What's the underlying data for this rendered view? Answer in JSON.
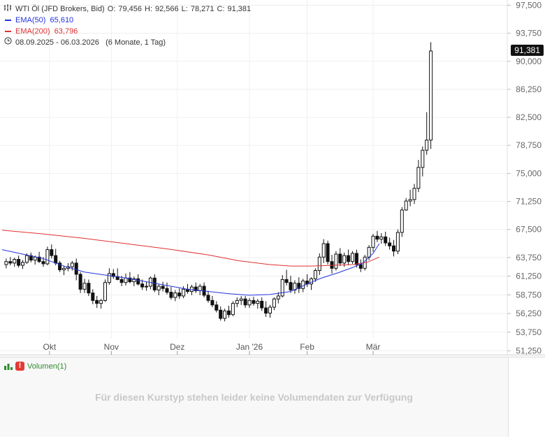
{
  "header": {
    "instrument": "WTI Öl (JFD Brokers, Bid)",
    "open_label": "O:",
    "open": "79,456",
    "high_label": "H:",
    "high": "92,566",
    "low_label": "L:",
    "low": "78,271",
    "close_label": "C:",
    "close": "91,381",
    "ema50_label": "EMA(50)",
    "ema50_value": "65,610",
    "ema200_label": "EMA(200)",
    "ema200_value": "63,796",
    "date_range": "08.09.2025 - 06.03.2026",
    "range_note": "(6 Monate, 1 Tag)"
  },
  "last_price_label": "91,381",
  "colors": {
    "ema50": "#2233dd",
    "ema200": "#e03030",
    "candle": "#111111",
    "volume_green": "#2e8b2e"
  },
  "volume": {
    "legend_label": "Volumen(1)",
    "message": "Für diesen Kurstyp stehen leider keine Volumendaten zur Verfügung"
  },
  "chart_data": {
    "type": "candlestick",
    "y_axis_ticks": [
      "97,500",
      "93,750",
      "90,000",
      "86,250",
      "82,500",
      "78,750",
      "75,000",
      "71,250",
      "67,500",
      "63,750",
      "61,250",
      "58,750",
      "56,250",
      "53,750",
      "51,250"
    ],
    "y_axis_values": [
      97.5,
      93.75,
      90.0,
      86.25,
      82.5,
      78.75,
      75.0,
      71.25,
      67.5,
      63.75,
      61.25,
      58.75,
      56.25,
      53.75,
      51.25
    ],
    "ylim": [
      50.75,
      98.2
    ],
    "x_axis_labels": [
      "Okt",
      "Nov",
      "Dez",
      "Jan '26",
      "Feb",
      "Mär"
    ],
    "x_axis_label_days": [
      23,
      53,
      85,
      120,
      148,
      180
    ],
    "day_range": [
      0,
      199
    ],
    "ema50_points": [
      [
        0,
        64.8
      ],
      [
        10,
        64.2
      ],
      [
        20,
        63.6
      ],
      [
        30,
        62.6
      ],
      [
        40,
        61.8
      ],
      [
        50,
        61.4
      ],
      [
        60,
        61.0
      ],
      [
        70,
        60.5
      ],
      [
        80,
        60.0
      ],
      [
        90,
        59.5
      ],
      [
        100,
        59.2
      ],
      [
        110,
        58.9
      ],
      [
        120,
        58.7
      ],
      [
        130,
        58.8
      ],
      [
        140,
        59.2
      ],
      [
        148,
        60.2
      ],
      [
        155,
        61.0
      ],
      [
        163,
        61.7
      ],
      [
        170,
        62.4
      ],
      [
        175,
        63.0
      ],
      [
        180,
        64.3
      ],
      [
        183,
        65.61
      ]
    ],
    "ema200_points": [
      [
        0,
        67.4
      ],
      [
        20,
        66.9
      ],
      [
        40,
        66.3
      ],
      [
        60,
        65.6
      ],
      [
        80,
        64.9
      ],
      [
        100,
        64.1
      ],
      [
        115,
        63.3
      ],
      [
        130,
        62.8
      ],
      [
        140,
        62.6
      ],
      [
        150,
        62.6
      ],
      [
        160,
        62.7
      ],
      [
        170,
        62.8
      ],
      [
        177,
        63.1
      ],
      [
        183,
        63.796
      ]
    ],
    "candles": [
      [
        2,
        62.8,
        63.6,
        62.3,
        63.2
      ],
      [
        4,
        63.2,
        63.8,
        62.7,
        63.0
      ],
      [
        6,
        63.0,
        63.7,
        62.5,
        63.5
      ],
      [
        8,
        63.5,
        64.0,
        62.4,
        62.7
      ],
      [
        10,
        62.7,
        63.4,
        62.2,
        63.1
      ],
      [
        12,
        63.1,
        64.3,
        62.9,
        64.0
      ],
      [
        14,
        64.0,
        64.4,
        63.1,
        63.4
      ],
      [
        16,
        63.4,
        64.0,
        62.8,
        63.8
      ],
      [
        18,
        63.8,
        64.5,
        63.0,
        63.2
      ],
      [
        20,
        63.2,
        63.8,
        62.5,
        62.9
      ],
      [
        22,
        62.9,
        65.2,
        62.7,
        64.8
      ],
      [
        24,
        64.8,
        65.5,
        63.6,
        64.0
      ],
      [
        26,
        64.0,
        64.9,
        62.7,
        63.0
      ],
      [
        28,
        63.0,
        63.3,
        61.8,
        62.1
      ],
      [
        30,
        62.1,
        62.6,
        61.4,
        62.3
      ],
      [
        32,
        62.3,
        63.0,
        61.9,
        62.5
      ],
      [
        34,
        62.5,
        63.3,
        62.0,
        63.0
      ],
      [
        36,
        63.0,
        63.6,
        60.7,
        61.5
      ],
      [
        38,
        61.5,
        61.8,
        59.0,
        59.5
      ],
      [
        40,
        59.5,
        60.9,
        59.0,
        60.3
      ],
      [
        42,
        60.3,
        60.8,
        58.6,
        59.0
      ],
      [
        44,
        59.0,
        59.5,
        57.5,
        58.0
      ],
      [
        46,
        58.0,
        58.6,
        57.0,
        57.6
      ],
      [
        48,
        57.6,
        58.2,
        56.9,
        58.0
      ],
      [
        50,
        58.0,
        60.8,
        57.8,
        60.4
      ],
      [
        52,
        60.4,
        62.3,
        60.1,
        61.6
      ],
      [
        54,
        61.6,
        62.2,
        60.9,
        61.2
      ],
      [
        56,
        61.2,
        62.3,
        60.7,
        60.8
      ],
      [
        58,
        60.8,
        61.3,
        59.9,
        60.4
      ],
      [
        60,
        60.4,
        61.6,
        60.0,
        61.0
      ],
      [
        62,
        61.0,
        61.8,
        60.3,
        60.5
      ],
      [
        64,
        60.5,
        61.2,
        59.9,
        60.9
      ],
      [
        66,
        60.9,
        61.5,
        60.0,
        60.2
      ],
      [
        68,
        60.2,
        60.8,
        59.4,
        59.8
      ],
      [
        70,
        59.8,
        60.5,
        59.3,
        59.9
      ],
      [
        72,
        59.9,
        61.2,
        59.5,
        61.0
      ],
      [
        74,
        61.0,
        61.5,
        59.1,
        59.4
      ],
      [
        76,
        59.4,
        60.2,
        58.7,
        59.9
      ],
      [
        78,
        59.9,
        60.5,
        59.2,
        59.6
      ],
      [
        80,
        59.6,
        60.4,
        58.8,
        59.1
      ],
      [
        82,
        59.1,
        59.8,
        58.1,
        58.4
      ],
      [
        84,
        58.4,
        59.4,
        57.9,
        59.0
      ],
      [
        86,
        59.0,
        59.6,
        58.2,
        58.6
      ],
      [
        88,
        58.6,
        59.9,
        58.3,
        59.5
      ],
      [
        90,
        59.5,
        60.2,
        58.9,
        59.2
      ],
      [
        92,
        59.2,
        60.1,
        58.7,
        59.8
      ],
      [
        94,
        59.8,
        60.4,
        59.0,
        59.3
      ],
      [
        96,
        59.3,
        60.2,
        58.7,
        59.9
      ],
      [
        98,
        59.9,
        60.4,
        58.4,
        58.7
      ],
      [
        100,
        58.7,
        59.3,
        57.7,
        58.0
      ],
      [
        102,
        58.0,
        58.6,
        57.1,
        57.4
      ],
      [
        104,
        57.4,
        57.9,
        56.4,
        56.7
      ],
      [
        106,
        56.7,
        57.2,
        55.3,
        55.6
      ],
      [
        108,
        55.6,
        56.9,
        55.2,
        56.6
      ],
      [
        110,
        56.6,
        57.3,
        55.7,
        56.1
      ],
      [
        112,
        56.1,
        57.9,
        55.9,
        57.6
      ],
      [
        114,
        57.6,
        58.4,
        57.1,
        58.0
      ],
      [
        116,
        58.0,
        58.6,
        57.4,
        58.2
      ],
      [
        118,
        58.2,
        58.6,
        57.0,
        57.4
      ],
      [
        120,
        57.4,
        58.3,
        57.0,
        58.0
      ],
      [
        122,
        58.0,
        58.5,
        57.3,
        57.6
      ],
      [
        124,
        57.6,
        58.2,
        56.9,
        57.9
      ],
      [
        126,
        57.9,
        58.4,
        56.6,
        57.0
      ],
      [
        128,
        57.0,
        57.9,
        55.8,
        56.3
      ],
      [
        130,
        56.3,
        57.4,
        55.7,
        57.1
      ],
      [
        132,
        57.1,
        58.4,
        56.7,
        58.2
      ],
      [
        134,
        58.2,
        59.1,
        57.6,
        58.6
      ],
      [
        136,
        58.6,
        61.4,
        58.4,
        60.8
      ],
      [
        138,
        60.8,
        62.1,
        60.0,
        60.4
      ],
      [
        140,
        60.4,
        61.3,
        59.0,
        59.4
      ],
      [
        142,
        59.4,
        60.7,
        58.9,
        60.3
      ],
      [
        144,
        60.3,
        61.1,
        59.0,
        59.6
      ],
      [
        146,
        59.6,
        60.9,
        59.1,
        60.6
      ],
      [
        148,
        60.6,
        61.5,
        59.8,
        60.2
      ],
      [
        150,
        60.2,
        61.1,
        59.4,
        60.9
      ],
      [
        152,
        60.9,
        62.3,
        60.5,
        62.0
      ],
      [
        154,
        62.0,
        64.3,
        61.4,
        63.8
      ],
      [
        156,
        63.8,
        66.2,
        63.0,
        65.6
      ],
      [
        158,
        65.6,
        66.0,
        62.8,
        63.2
      ],
      [
        160,
        63.2,
        64.1,
        61.6,
        62.3
      ],
      [
        162,
        62.3,
        64.6,
        62.0,
        64.2
      ],
      [
        164,
        64.2,
        65.0,
        62.6,
        63.0
      ],
      [
        166,
        63.0,
        64.4,
        62.5,
        64.0
      ],
      [
        168,
        64.0,
        64.8,
        62.7,
        63.2
      ],
      [
        170,
        63.2,
        64.6,
        62.9,
        64.3
      ],
      [
        172,
        64.3,
        64.8,
        62.4,
        62.8
      ],
      [
        174,
        62.8,
        63.5,
        61.8,
        62.3
      ],
      [
        176,
        62.3,
        64.1,
        62.0,
        63.8
      ],
      [
        178,
        63.8,
        65.4,
        63.4,
        65.1
      ],
      [
        180,
        65.1,
        66.9,
        64.5,
        66.6
      ],
      [
        182,
        66.6,
        67.3,
        65.8,
        66.2
      ],
      [
        184,
        66.2,
        67.0,
        65.6,
        66.5
      ],
      [
        186,
        66.5,
        67.2,
        65.3,
        65.7
      ],
      [
        188,
        65.7,
        66.4,
        64.8,
        65.3
      ],
      [
        190,
        65.3,
        66.1,
        63.9,
        64.6
      ],
      [
        192,
        64.6,
        67.5,
        64.2,
        67.1
      ],
      [
        194,
        67.1,
        70.5,
        66.5,
        70.1
      ],
      [
        196,
        70.1,
        71.7,
        70.0,
        71.3
      ],
      [
        198,
        71.3,
        72.8,
        70.6,
        71.5
      ],
      [
        200,
        71.5,
        73.6,
        70.9,
        73.0
      ],
      [
        202,
        73.0,
        76.8,
        72.5,
        75.8
      ],
      [
        204,
        75.8,
        78.6,
        74.6,
        78.1
      ],
      [
        206,
        78.1,
        83.2,
        77.5,
        79.456
      ],
      [
        208,
        79.456,
        92.566,
        78.271,
        91.381
      ]
    ]
  }
}
